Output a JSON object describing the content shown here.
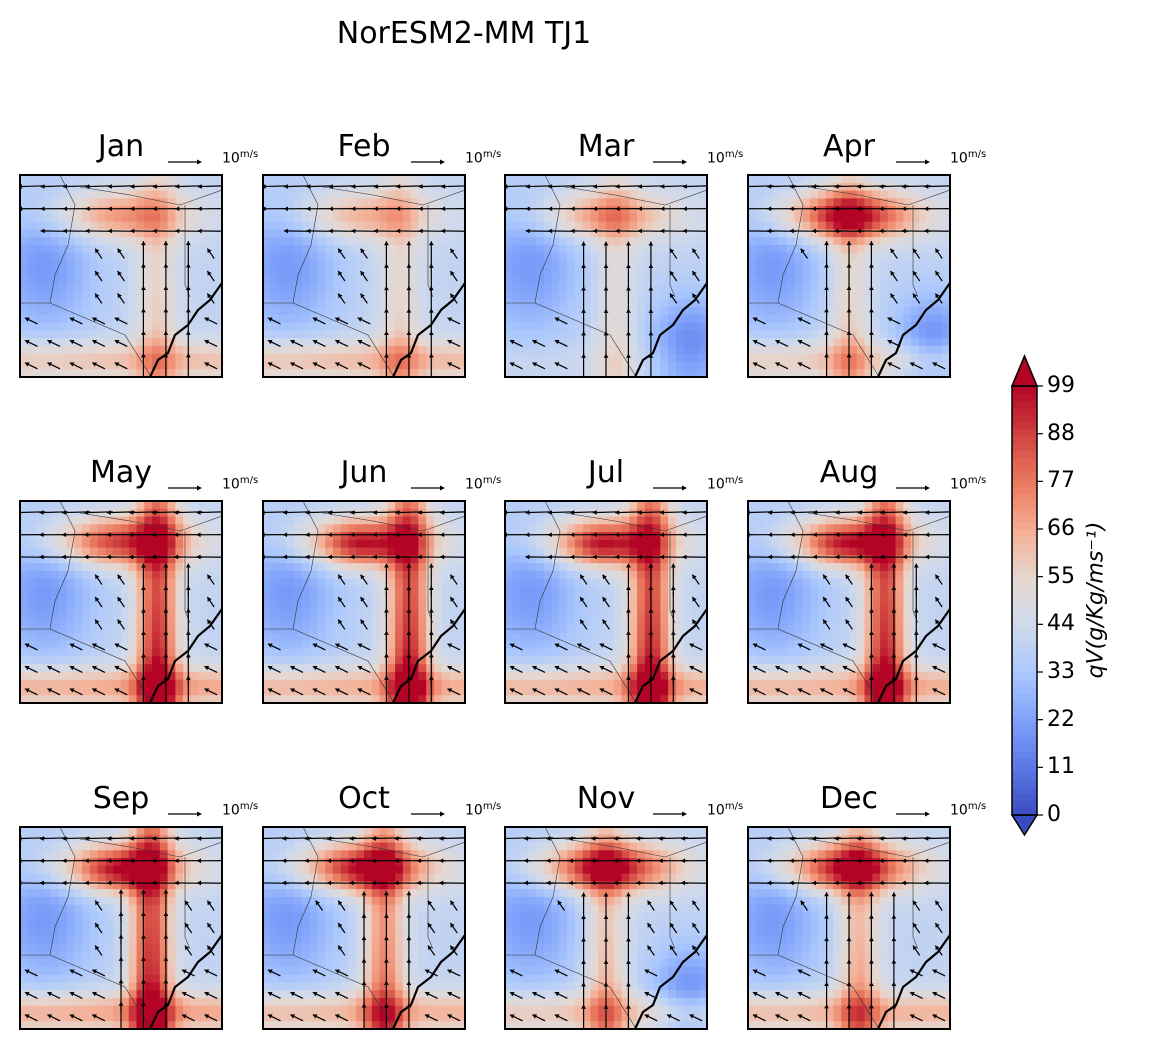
{
  "figure": {
    "title": "NorESM2-MM TJ1"
  },
  "chart_data": {
    "type": "heatmap",
    "title": "NorESM2-MM TJ1",
    "panels": [
      {
        "month": "Jan",
        "north_strength": 72,
        "jet_strength": 60,
        "band_strength": 72,
        "jet_axis": 0.68,
        "core_strength": 70,
        "southeast_low": false,
        "bottom_band": 66
      },
      {
        "month": "Feb",
        "north_strength": 66,
        "jet_strength": 58,
        "band_strength": 66,
        "jet_axis": 0.68,
        "core_strength": 65,
        "southeast_low": false,
        "bottom_band": 68
      },
      {
        "month": "Mar",
        "north_strength": 70,
        "jet_strength": 55,
        "band_strength": 68,
        "jet_axis": 0.55,
        "core_strength": 72,
        "southeast_low": true,
        "bottom_band": 45
      },
      {
        "month": "Apr",
        "north_strength": 92,
        "jet_strength": 60,
        "band_strength": 60,
        "jet_axis": 0.5,
        "core_strength": 99,
        "southeast_low": true,
        "bottom_band": 64
      },
      {
        "month": "May",
        "north_strength": 88,
        "jet_strength": 99,
        "band_strength": 70,
        "jet_axis": 0.68,
        "core_strength": 90,
        "southeast_low": false,
        "bottom_band": 74
      },
      {
        "month": "Jun",
        "north_strength": 80,
        "jet_strength": 99,
        "band_strength": 70,
        "jet_axis": 0.72,
        "core_strength": 99,
        "southeast_low": false,
        "bottom_band": 72
      },
      {
        "month": "Jul",
        "north_strength": 75,
        "jet_strength": 99,
        "band_strength": 68,
        "jet_axis": 0.72,
        "core_strength": 99,
        "southeast_low": false,
        "bottom_band": 72
      },
      {
        "month": "Aug",
        "north_strength": 80,
        "jet_strength": 99,
        "band_strength": 70,
        "jet_axis": 0.68,
        "core_strength": 99,
        "southeast_low": false,
        "bottom_band": 72
      },
      {
        "month": "Sep",
        "north_strength": 82,
        "jet_strength": 99,
        "band_strength": 70,
        "jet_axis": 0.65,
        "core_strength": 99,
        "southeast_low": false,
        "bottom_band": 74
      },
      {
        "month": "Oct",
        "north_strength": 92,
        "jet_strength": 80,
        "band_strength": 66,
        "jet_axis": 0.6,
        "core_strength": 99,
        "southeast_low": false,
        "bottom_band": 70
      },
      {
        "month": "Nov",
        "north_strength": 95,
        "jet_strength": 66,
        "band_strength": 64,
        "jet_axis": 0.5,
        "core_strength": 99,
        "southeast_low": true,
        "bottom_band": 66
      },
      {
        "month": "Dec",
        "north_strength": 92,
        "jet_strength": 70,
        "band_strength": 64,
        "jet_axis": 0.55,
        "core_strength": 99,
        "southeast_low": false,
        "bottom_band": 70
      }
    ],
    "reference_vector": {
      "label_base": "10",
      "label_unit": "m/s"
    },
    "colorbar": {
      "ticks": [
        0,
        11,
        22,
        33,
        44,
        55,
        66,
        77,
        88,
        99
      ],
      "min": 0,
      "max": 99,
      "colormap": "coolwarm",
      "extend": "both",
      "label": "qV(g/Kg/ms⁻¹)"
    }
  },
  "colors": {
    "coast": "#000000",
    "border": "#333333",
    "arrow": "#000000"
  }
}
